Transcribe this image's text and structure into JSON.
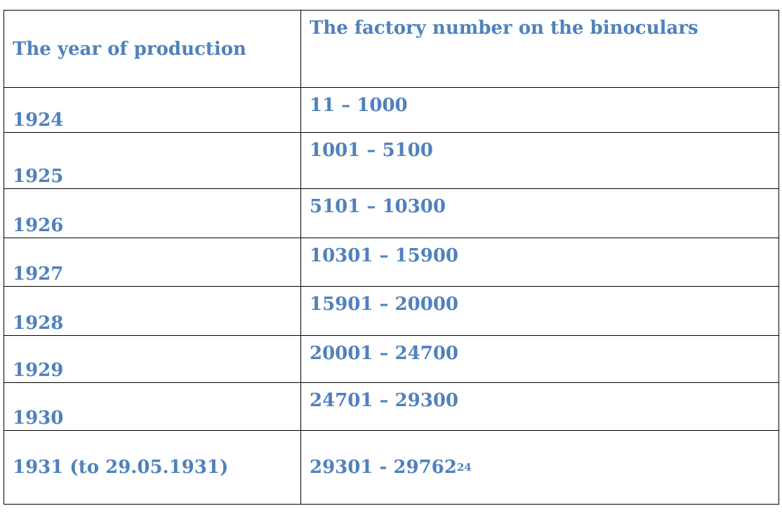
{
  "table": {
    "header": [
      "The year of production",
      "The factory number on the binoculars"
    ],
    "rows": [
      [
        "1924",
        "11 – 1000"
      ],
      [
        "1925",
        "1001 – 5100"
      ],
      [
        "1926",
        "5101 – 10300"
      ],
      [
        "1927",
        "10301 – 15900"
      ],
      [
        "1928",
        "15901 – 20000"
      ],
      [
        "1929",
        "20001 – 24700"
      ],
      [
        "1930",
        "24701 – 29300"
      ],
      [
        "1931 (to 29.05.1931)",
        "29301 - 29762"
      ]
    ],
    "footnote_ref": "24"
  }
}
